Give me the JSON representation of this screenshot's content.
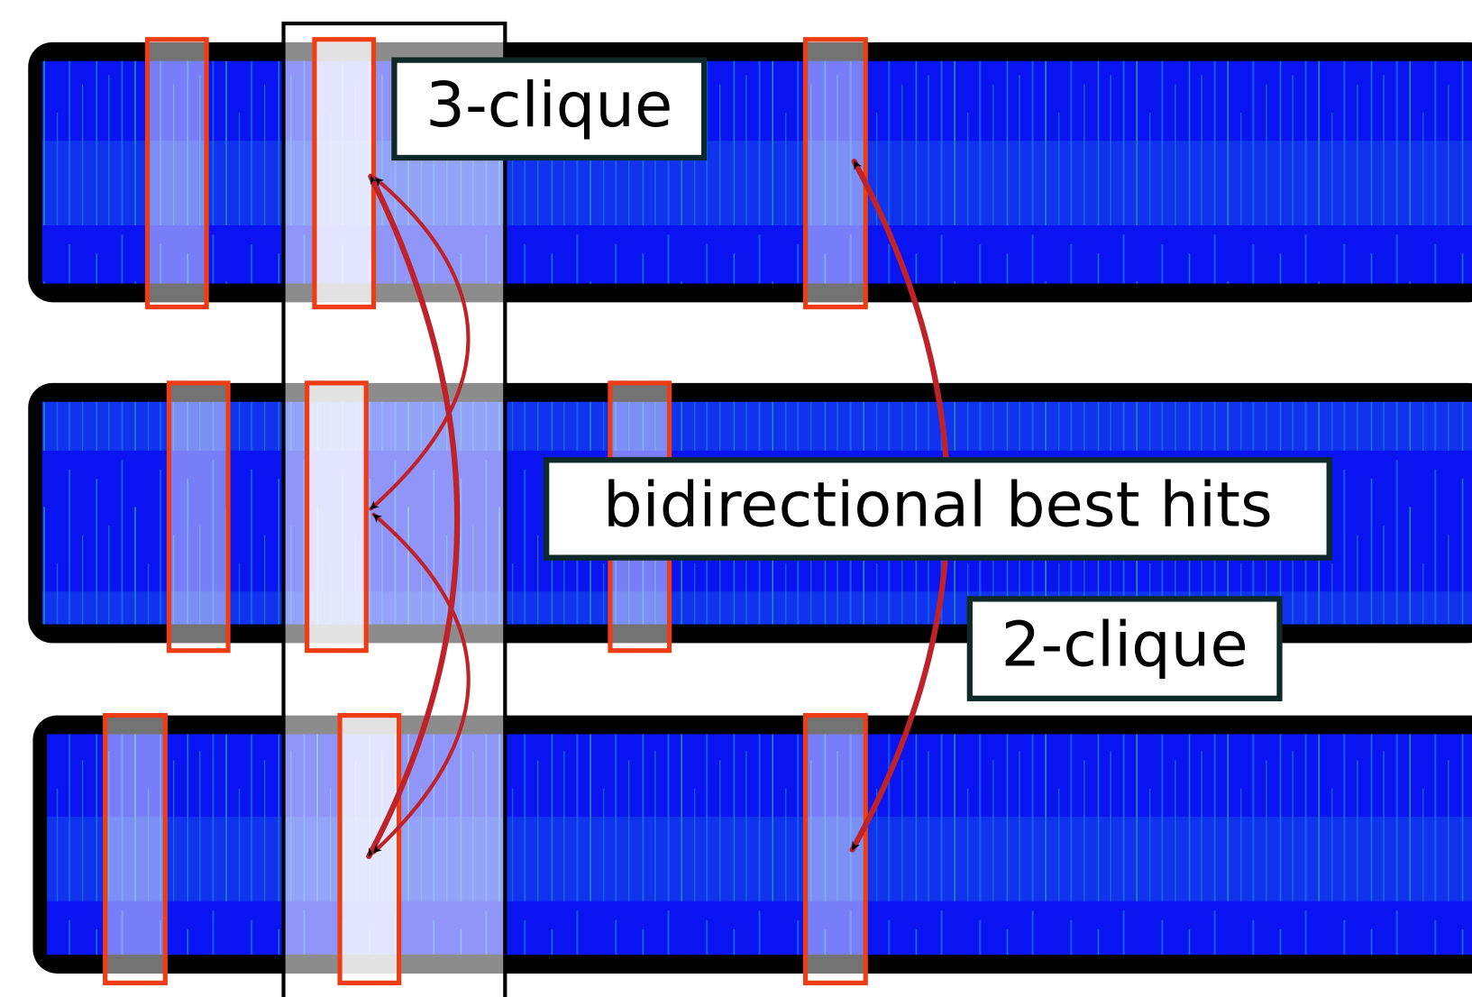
{
  "labels": {
    "three_clique": "3-clique",
    "bbh": "bidirectional best hits",
    "two_clique": "2-clique"
  }
}
